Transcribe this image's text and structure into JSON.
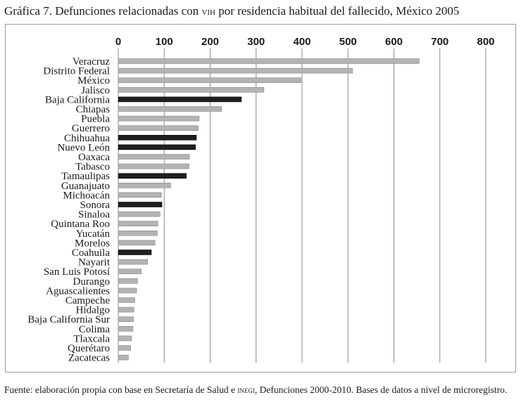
{
  "title": {
    "prefix": "Gráfica 7. Defunciones relacionadas con ",
    "abbr": "vih",
    "suffix": " por residencia habitual del fallecido, México 2005"
  },
  "source": {
    "prefix": "Fuente: elaboración propia con base en Secretaría de Salud e ",
    "abbr": "inegi",
    "suffix": ", Defunciones 2000-2010. Bases de datos a nivel de microregistro."
  },
  "colors": {
    "default": "#b3b3b3",
    "highlight": "#1f1f1f",
    "grid": "#8c8c8c"
  },
  "chart_data": {
    "type": "bar",
    "orientation": "horizontal",
    "xlim": [
      0,
      800
    ],
    "x_ticks": [
      0,
      100,
      200,
      300,
      400,
      500,
      600,
      700,
      800
    ],
    "x_axis_position": "top",
    "grid": true,
    "categories": [
      "Veracruz",
      "Distrito Federal",
      "México",
      "Jalisco",
      "Baja California",
      "Chiapas",
      "Puebla",
      "Guerrero",
      "Chihuahua",
      "Nuevo León",
      "Oaxaca",
      "Tabasco",
      "Tamaulipas",
      "Guanajuato",
      "Michoacán",
      "Sonora",
      "Sinaloa",
      "Quintana Roo",
      "Yucatán",
      "Morelos",
      "Coahuila",
      "Nayarit",
      "San Luis Potosí",
      "Durango",
      "Aguascalientes",
      "Campeche",
      "Hidalgo",
      "Baja California Sur",
      "Colima",
      "Tlaxcala",
      "Querétaro",
      "Zacatecas"
    ],
    "values": [
      655,
      510,
      398,
      317,
      268,
      225,
      176,
      174,
      170,
      168,
      155,
      154,
      148,
      114,
      94,
      95,
      91,
      86,
      85,
      80,
      72,
      64,
      50,
      42,
      40,
      36,
      34,
      33,
      32,
      29,
      27,
      22
    ],
    "highlighted": [
      "Baja California",
      "Chihuahua",
      "Nuevo León",
      "Tamaulipas",
      "Sonora",
      "Coahuila"
    ]
  }
}
